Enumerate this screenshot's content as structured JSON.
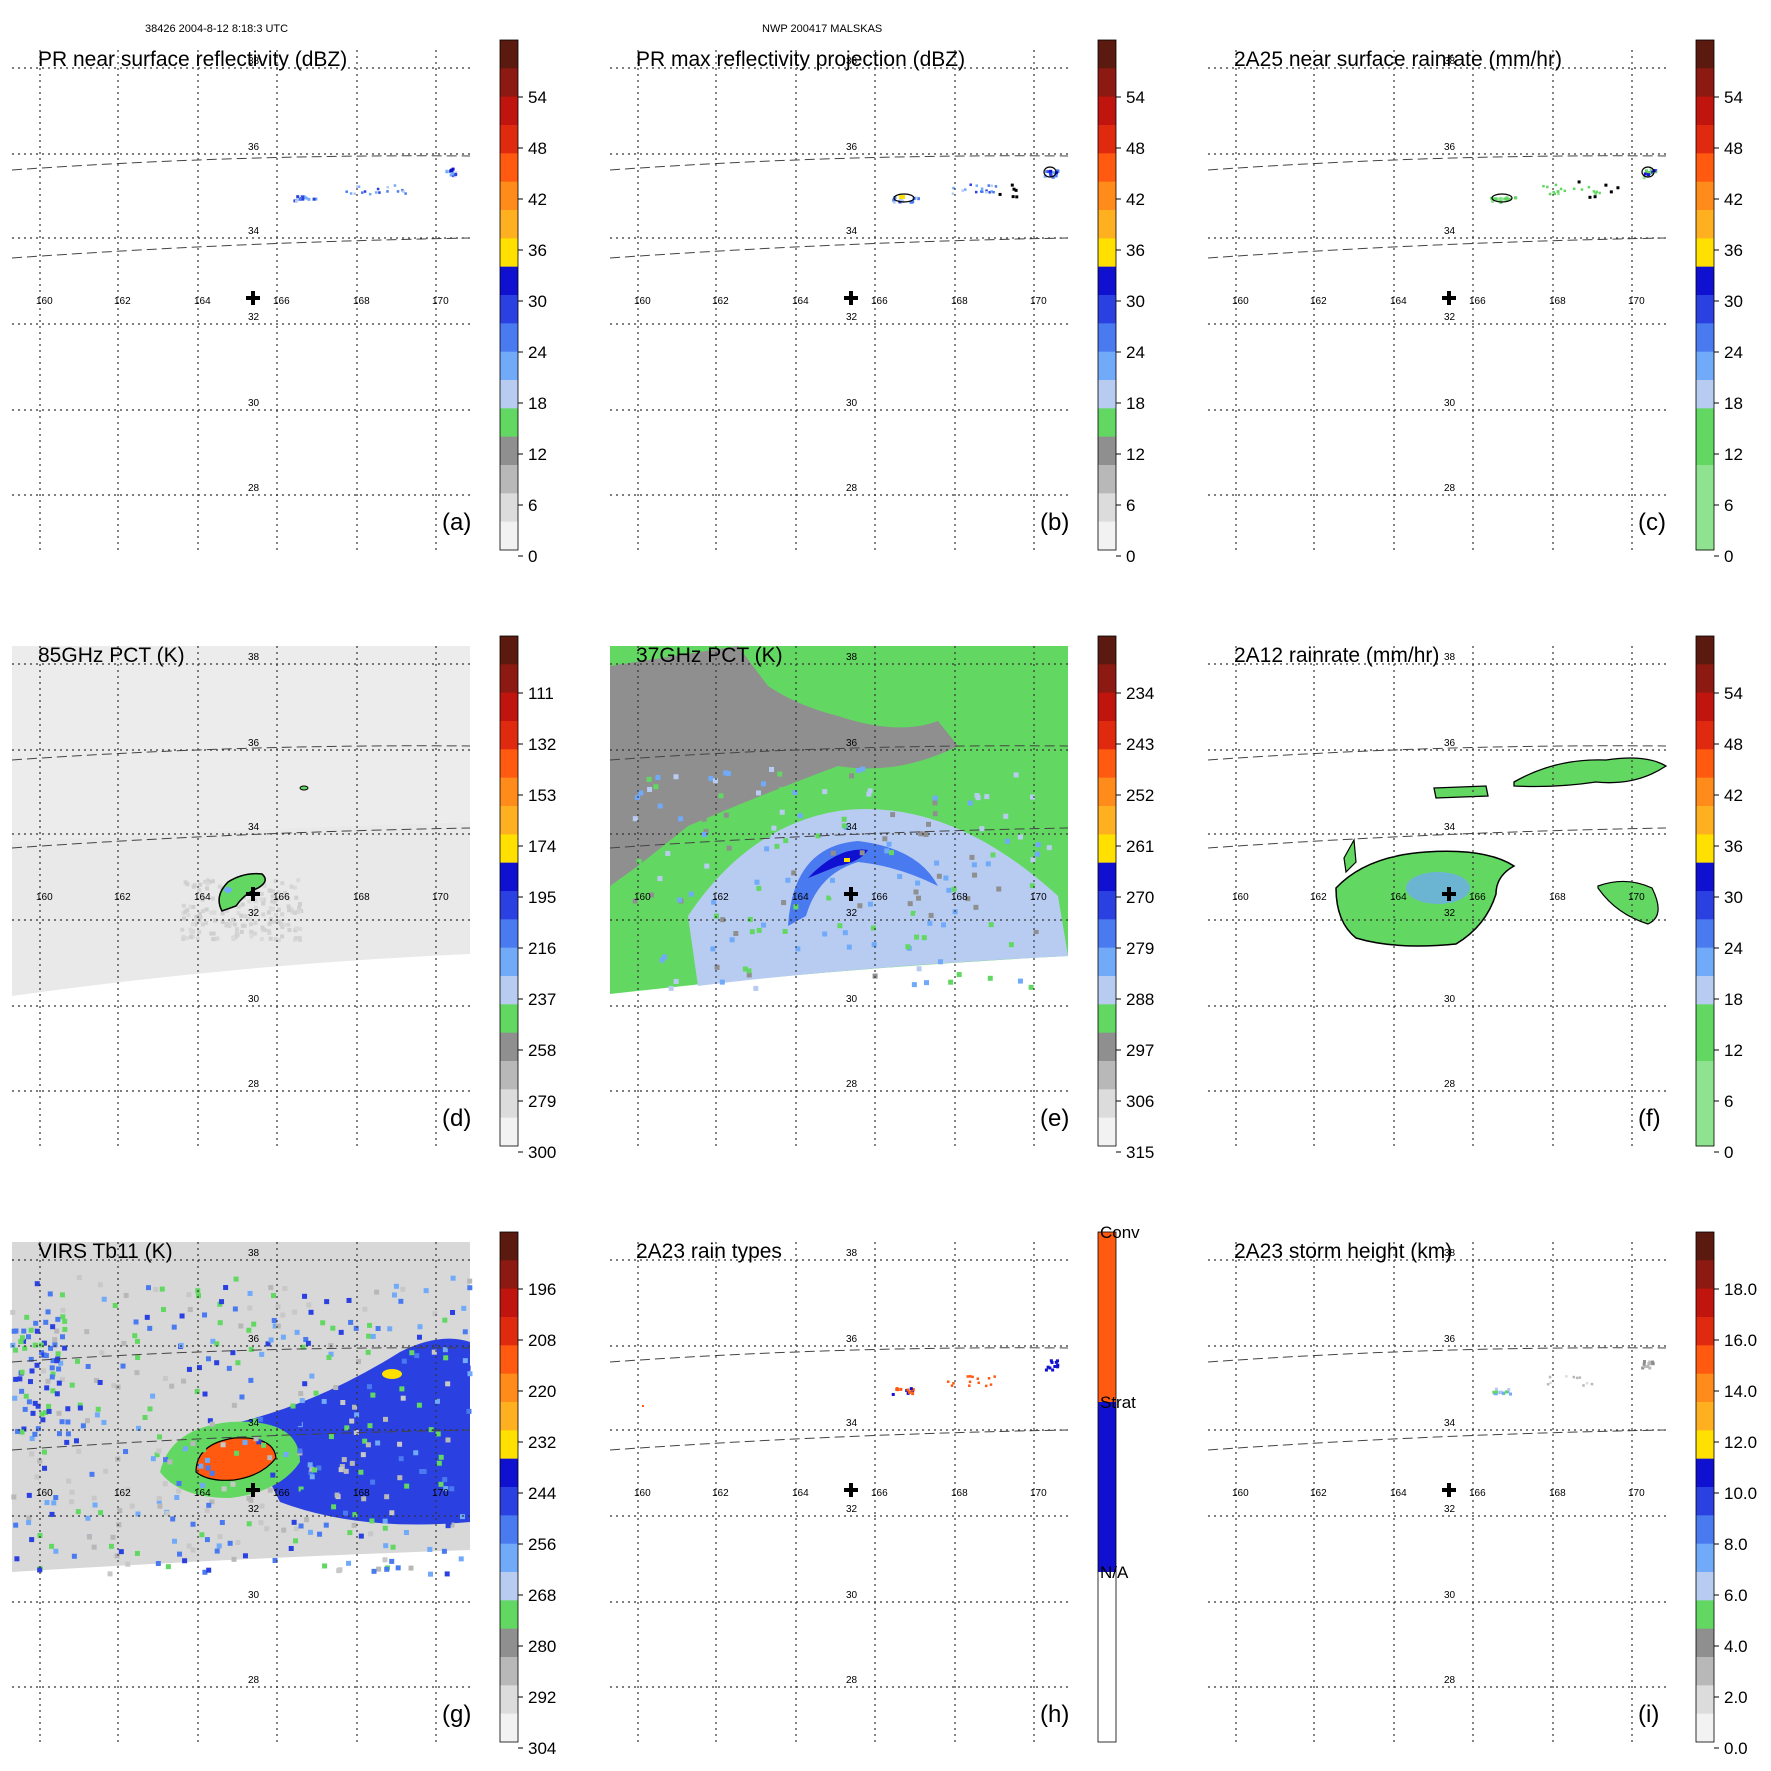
{
  "header": {
    "left": "38426 2004-8-12 8:18:3 UTC",
    "center": "NWP 200417 MALSKAS"
  },
  "lon_ticks": [
    "160",
    "162",
    "164",
    "166",
    "168",
    "170"
  ],
  "lat_ticks": [
    "38",
    "36",
    "34",
    "32",
    "30",
    "28"
  ],
  "panels": [
    {
      "id": "a",
      "title": "PR near surface reflectivity (dBZ)",
      "letter": "(a)",
      "colorbar": {
        "labels": [
          "54",
          "48",
          "42",
          "36",
          "30",
          "24",
          "18",
          "12",
          "6",
          "0"
        ],
        "colors": [
          "#5a1a10",
          "#8c1a12",
          "#c0140f",
          "#e02a10",
          "#ff5a10",
          "#ff8c1a",
          "#ffb020",
          "#ffe000",
          "#1010d0",
          "#2a40e0",
          "#4a7af0",
          "#70aaf8",
          "#b8ccf2",
          "#62d862",
          "#8f8f8f",
          "#b8b8b8",
          "#dcdcdc",
          "#f2f2f2"
        ]
      },
      "field": "pr_near"
    },
    {
      "id": "b",
      "title": "PR max reflectivity projection (dBZ)",
      "letter": "(b)",
      "colorbar": {
        "labels": [
          "54",
          "48",
          "42",
          "36",
          "30",
          "24",
          "18",
          "12",
          "6",
          "0"
        ],
        "colors": [
          "#5a1a10",
          "#8c1a12",
          "#c0140f",
          "#e02a10",
          "#ff5a10",
          "#ff8c1a",
          "#ffb020",
          "#ffe000",
          "#1010d0",
          "#2a40e0",
          "#4a7af0",
          "#70aaf8",
          "#b8ccf2",
          "#62d862",
          "#8f8f8f",
          "#b8b8b8",
          "#dcdcdc",
          "#f2f2f2"
        ]
      },
      "field": "pr_max"
    },
    {
      "id": "c",
      "title": "2A25 near surface rainrate (mm/hr)",
      "letter": "(c)",
      "colorbar": {
        "labels": [
          "54",
          "48",
          "42",
          "36",
          "30",
          "24",
          "18",
          "12",
          "6",
          "0"
        ],
        "colors": [
          "#5a1a10",
          "#8c1a12",
          "#c0140f",
          "#e02a10",
          "#ff5a10",
          "#ff8c1a",
          "#ffb020",
          "#ffe000",
          "#1010d0",
          "#2a40e0",
          "#4a7af0",
          "#70aaf8",
          "#b8ccf2",
          "#62d862",
          "#62d862",
          "#8fe28f",
          "#8fe28f",
          "#8fe28f"
        ]
      },
      "field": "rain25"
    },
    {
      "id": "d",
      "title": "85GHz PCT (K)",
      "letter": "(d)",
      "colorbar": {
        "labels": [
          "111",
          "132",
          "153",
          "174",
          "195",
          "216",
          "237",
          "258",
          "279",
          "300"
        ],
        "colors": [
          "#5a1a10",
          "#8c1a12",
          "#c0140f",
          "#e02a10",
          "#ff5a10",
          "#ff8c1a",
          "#ffb020",
          "#ffe000",
          "#1010d0",
          "#2a40e0",
          "#4a7af0",
          "#70aaf8",
          "#b8ccf2",
          "#62d862",
          "#8f8f8f",
          "#b8b8b8",
          "#dcdcdc",
          "#f2f2f2"
        ]
      },
      "field": "pct85"
    },
    {
      "id": "e",
      "title": "37GHz PCT (K)",
      "letter": "(e)",
      "colorbar": {
        "labels": [
          "234",
          "243",
          "252",
          "261",
          "270",
          "279",
          "288",
          "297",
          "306",
          "315"
        ],
        "colors": [
          "#5a1a10",
          "#8c1a12",
          "#c0140f",
          "#e02a10",
          "#ff5a10",
          "#ff8c1a",
          "#ffb020",
          "#ffe000",
          "#1010d0",
          "#2a40e0",
          "#4a7af0",
          "#70aaf8",
          "#b8ccf2",
          "#62d862",
          "#8f8f8f",
          "#b8b8b8",
          "#dcdcdc",
          "#f2f2f2"
        ]
      },
      "field": "pct37"
    },
    {
      "id": "f",
      "title": "2A12 rainrate (mm/hr)",
      "letter": "(f)",
      "colorbar": {
        "labels": [
          "54",
          "48",
          "42",
          "36",
          "30",
          "24",
          "18",
          "12",
          "6",
          "0"
        ],
        "colors": [
          "#5a1a10",
          "#8c1a12",
          "#c0140f",
          "#e02a10",
          "#ff5a10",
          "#ff8c1a",
          "#ffb020",
          "#ffe000",
          "#1010d0",
          "#2a40e0",
          "#4a7af0",
          "#70aaf8",
          "#b8ccf2",
          "#62d862",
          "#62d862",
          "#8fe28f",
          "#8fe28f",
          "#8fe28f"
        ]
      },
      "field": "rain12"
    },
    {
      "id": "g",
      "title": "VIRS Tb11 (K)",
      "letter": "(g)",
      "colorbar": {
        "labels": [
          "196",
          "208",
          "220",
          "232",
          "244",
          "256",
          "268",
          "280",
          "292",
          "304"
        ],
        "colors": [
          "#5a1a10",
          "#8c1a12",
          "#c0140f",
          "#e02a10",
          "#ff5a10",
          "#ff8c1a",
          "#ffb020",
          "#ffe000",
          "#1010d0",
          "#2a40e0",
          "#4a7af0",
          "#70aaf8",
          "#b8ccf2",
          "#62d862",
          "#8f8f8f",
          "#b8b8b8",
          "#dcdcdc",
          "#f2f2f2"
        ]
      },
      "field": "virs"
    },
    {
      "id": "h",
      "title": "2A23 rain types",
      "letter": "(h)",
      "colorbar": {
        "labels": [
          "Conv",
          "Strat",
          "N/A"
        ],
        "colors": [
          "#ff5a10",
          "#1010d0",
          "#ffffff"
        ]
      },
      "field": "raintype"
    },
    {
      "id": "i",
      "title": "2A23 storm height (km)",
      "letter": "(i)",
      "colorbar": {
        "labels": [
          "18.0",
          "16.0",
          "14.0",
          "12.0",
          "10.0",
          "8.0",
          "6.0",
          "4.0",
          "2.0",
          "0.0"
        ],
        "colors": [
          "#5a1a10",
          "#8c1a12",
          "#c0140f",
          "#e02a10",
          "#ff5a10",
          "#ff8c1a",
          "#ffb020",
          "#ffe000",
          "#1010d0",
          "#2a40e0",
          "#4a7af0",
          "#70aaf8",
          "#b8ccf2",
          "#62d862",
          "#8f8f8f",
          "#b8b8b8",
          "#dcdcdc",
          "#f2f2f2"
        ]
      },
      "field": "height"
    }
  ]
}
